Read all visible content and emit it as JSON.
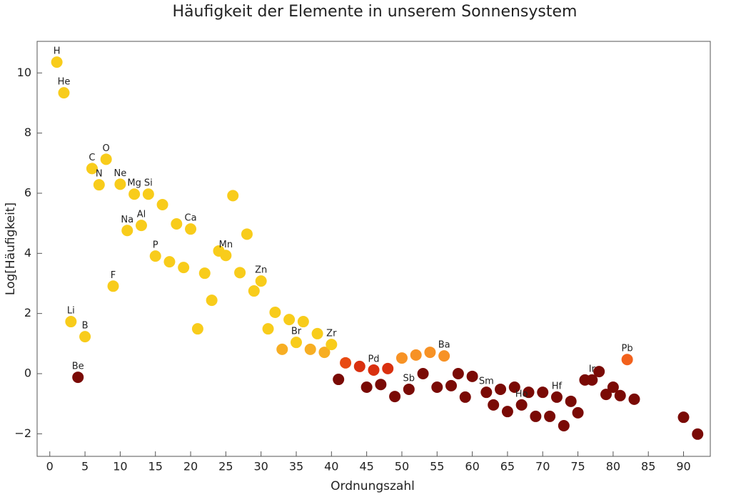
{
  "chart_data": {
    "type": "scatter",
    "title": "Häufigkeit der Elemente in unserem Sonnensystem",
    "x_label": "Ordnungszahl",
    "y_label": "Log[Häufigkeit]",
    "xlim": [
      -1.8,
      93.8
    ],
    "ylim": [
      -2.75,
      11.05
    ],
    "xticks": [
      0,
      5,
      10,
      15,
      20,
      25,
      30,
      35,
      40,
      45,
      50,
      55,
      60,
      65,
      70,
      75,
      80,
      85,
      90
    ],
    "yticks": [
      {
        "value": -2,
        "label": "−2"
      },
      0,
      2,
      4,
      6,
      8,
      10
    ],
    "x": [
      1,
      2,
      3,
      4,
      5,
      6,
      7,
      8,
      9,
      10,
      11,
      12,
      13,
      14,
      15,
      16,
      17,
      18,
      19,
      20,
      21,
      22,
      23,
      24,
      25,
      26,
      27,
      28,
      29,
      30,
      31,
      32,
      33,
      34,
      35,
      36,
      37,
      38,
      39,
      40,
      41,
      42,
      44,
      45,
      46,
      47,
      48,
      49,
      50,
      51,
      52,
      53,
      54,
      55,
      56,
      57,
      58,
      59,
      60,
      62,
      63,
      64,
      65,
      66,
      67,
      68,
      69,
      70,
      71,
      72,
      73,
      74,
      75,
      76,
      77,
      78,
      79,
      80,
      81,
      82,
      83,
      90,
      92
    ],
    "values": [
      10.36,
      9.34,
      1.73,
      -0.12,
      1.23,
      6.82,
      6.28,
      7.13,
      2.91,
      6.3,
      4.76,
      5.97,
      4.93,
      5.97,
      3.91,
      5.62,
      3.72,
      4.98,
      3.53,
      4.81,
      1.49,
      3.34,
      2.44,
      4.08,
      3.93,
      5.92,
      3.36,
      4.64,
      2.75,
      3.08,
      1.49,
      2.04,
      0.81,
      1.8,
      1.04,
      1.73,
      0.81,
      1.33,
      0.71,
      0.97,
      -0.19,
      0.36,
      0.24,
      -0.45,
      0.12,
      -0.36,
      0.17,
      -0.76,
      0.52,
      -0.52,
      0.62,
      0,
      0.71,
      -0.45,
      0.59,
      -0.4,
      0,
      -0.78,
      -0.09,
      -0.62,
      -1.04,
      -0.52,
      -1.26,
      -0.45,
      -1.04,
      -0.62,
      -1.42,
      -0.62,
      -1.42,
      -0.78,
      -1.73,
      -0.92,
      -1.3,
      -0.21,
      -0.21,
      0.07,
      -0.69,
      -0.45,
      -0.73,
      0.47,
      -0.85,
      -1.45,
      -2.01
    ],
    "colors": [
      "#f8cc1b",
      "#f8cc1b",
      "#f8cc1b",
      "#7a0a05",
      "#f8cc1b",
      "#f8cc1b",
      "#f8cc1b",
      "#f8cc1b",
      "#f8cc1b",
      "#f8cc1b",
      "#f8cc1b",
      "#f8cc1b",
      "#f8cc1b",
      "#f8cc1b",
      "#f8cc1b",
      "#f8cc1b",
      "#f8cc1b",
      "#f8cc1b",
      "#f8cc1b",
      "#f8cc1b",
      "#f8cc1b",
      "#f8cc1b",
      "#f8cc1b",
      "#f8cc1b",
      "#f8cc1b",
      "#f8cc1b",
      "#f8cc1b",
      "#f8cc1b",
      "#f8cc1b",
      "#f8cc1b",
      "#f8cc1b",
      "#f8cc1b",
      "#f7ae23",
      "#f8cc1b",
      "#f8cc1b",
      "#f8cc1b",
      "#f7ae23",
      "#f8cc1b",
      "#f7ae23",
      "#f8cc1b",
      "#7a0a05",
      "#e84a12",
      "#d9300f",
      "#7a0a05",
      "#d9300f",
      "#7a0a05",
      "#d9300f",
      "#7a0a05",
      "#f79225",
      "#7a0a05",
      "#f79225",
      "#7a0a05",
      "#f79225",
      "#7a0a05",
      "#f79225",
      "#7a0a05",
      "#7a0a05",
      "#7a0a05",
      "#7a0a05",
      "#7a0a05",
      "#7a0a05",
      "#7a0a05",
      "#7a0a05",
      "#7a0a05",
      "#7a0a05",
      "#7a0a05",
      "#7a0a05",
      "#7a0a05",
      "#7a0a05",
      "#7a0a05",
      "#7a0a05",
      "#7a0a05",
      "#7a0a05",
      "#7a0a05",
      "#7a0a05",
      "#7a0a05",
      "#7a0a05",
      "#7a0a05",
      "#7a0a05",
      "#f2611c",
      "#7a0a05",
      "#7a0a05",
      "#7a0a05"
    ],
    "labels": [
      "H",
      "He",
      "Li",
      "Be",
      "B",
      "C",
      "N",
      "O",
      "F",
      "Ne",
      "Na",
      "Mg",
      "Al",
      "Si",
      "P",
      null,
      null,
      null,
      null,
      "Ca",
      null,
      null,
      null,
      null,
      "Mn",
      null,
      null,
      null,
      null,
      "Zn",
      null,
      null,
      null,
      null,
      "Br",
      null,
      null,
      null,
      null,
      "Zr",
      null,
      null,
      null,
      null,
      "Pd",
      null,
      null,
      null,
      null,
      "Sb",
      null,
      null,
      null,
      null,
      "Ba",
      null,
      null,
      null,
      null,
      "Sm",
      null,
      null,
      null,
      null,
      "Ho",
      null,
      null,
      null,
      null,
      "Hf",
      null,
      null,
      null,
      null,
      "Ir",
      null,
      null,
      null,
      null,
      "Pb",
      null,
      null,
      null
    ]
  }
}
